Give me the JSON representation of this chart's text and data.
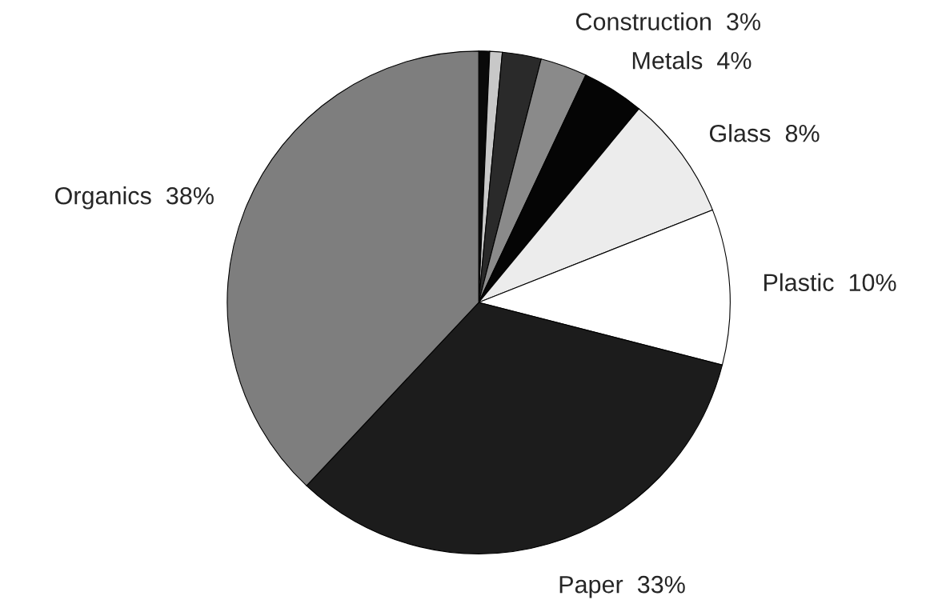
{
  "chart_data": {
    "type": "pie",
    "categories": [
      null,
      null,
      null,
      "Construction",
      "Metals",
      "Glass",
      "Plastic",
      "Paper",
      "Organics"
    ],
    "values": [
      0.7,
      0.8,
      2.5,
      3,
      4,
      8,
      10,
      33,
      38
    ],
    "value_labels": [
      null,
      null,
      null,
      "3%",
      "4%",
      "8%",
      "10%",
      "33%",
      "38%"
    ],
    "colors": [
      "#0a0a0a",
      "#c8c8c8",
      "#2a2a2a",
      "#8a8a8a",
      "#050505",
      "#ececec",
      "#ffffff",
      "#1c1c1c",
      "#7e7e7e"
    ]
  }
}
